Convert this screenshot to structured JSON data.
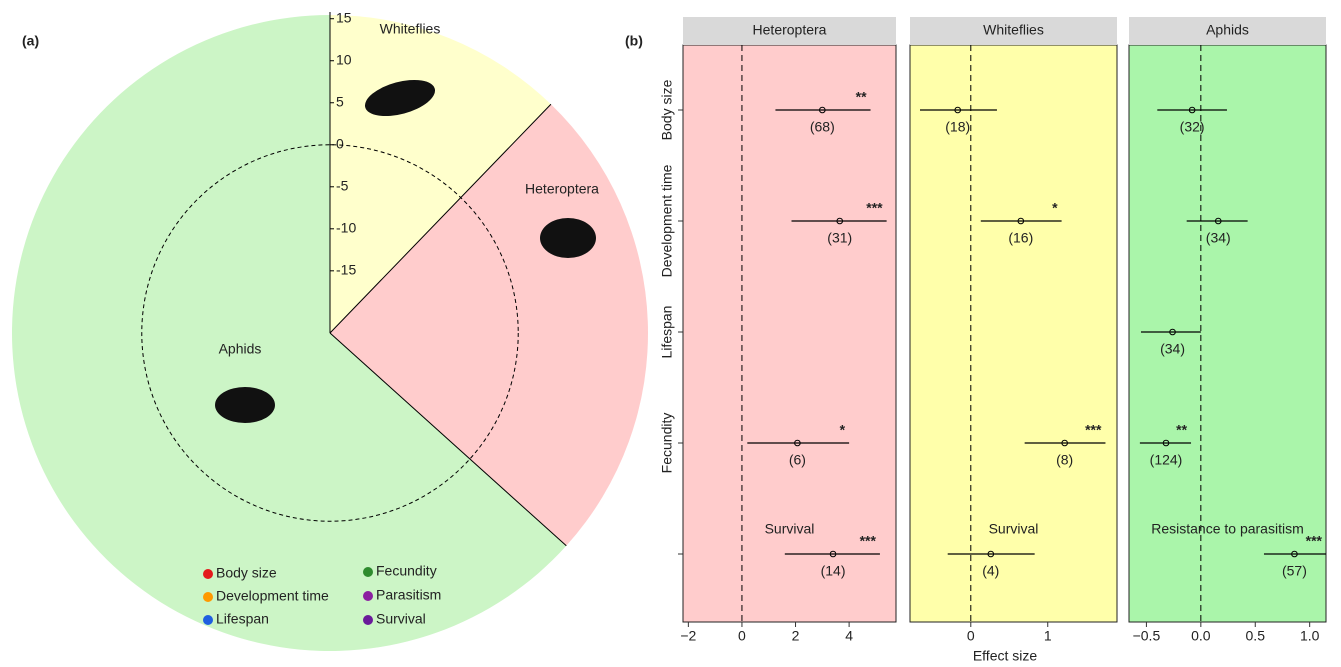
{
  "chart_data": [
    {
      "type": "radial",
      "panel_label": "(a)",
      "rlim": [
        -22.4,
        15.8
      ],
      "rticks": [
        15,
        10,
        5,
        0,
        -5,
        -10,
        -15
      ],
      "clades": [
        {
          "name": "Whiteflies",
          "color": "#ffffcc"
        },
        {
          "name": "Heteroptera",
          "color": "#ffcccc"
        },
        {
          "name": "Aphids",
          "color": "#ccf5c6"
        }
      ],
      "legend": [
        {
          "name": "Body size",
          "color": "#e41a1c"
        },
        {
          "name": "Development time",
          "color": "#ff9900"
        },
        {
          "name": "Lifespan",
          "color": "#1f5fe0"
        },
        {
          "name": "Fecundity",
          "color": "#2e8b2e"
        },
        {
          "name": "Parasitism",
          "color": "#8b1fa0"
        },
        {
          "name": "Survival",
          "color": "#6a1a9a"
        }
      ]
    },
    {
      "type": "forest",
      "panel_label": "(b)",
      "xlabel": "Effect size",
      "categories": [
        "Body size",
        "Development time",
        "Lifespan",
        "Fecundity",
        null
      ],
      "facets": [
        {
          "title": "Heteroptera",
          "color": "#ffcccc",
          "xlim": [
            -2.2,
            5.75
          ],
          "xticks": [
            {
              "value": -2,
              "label": "−2"
            },
            0,
            2,
            4
          ],
          "values": [
            3.0,
            3.65,
            null,
            2.07,
            3.4
          ],
          "lower": [
            1.25,
            1.85,
            null,
            0.2,
            1.6
          ],
          "upper": [
            4.8,
            5.4,
            null,
            4.0,
            5.15
          ],
          "n_labels": [
            "(68)",
            "(31)",
            null,
            "(6)",
            "(14)"
          ],
          "sig": [
            "**",
            "***",
            null,
            "*",
            "***"
          ],
          "notes": [
            null,
            null,
            null,
            null,
            "Survival"
          ]
        },
        {
          "title": "Whiteflies",
          "color": "#ffffaa",
          "xlim": [
            -0.79,
            1.9
          ],
          "xticks": [
            0,
            1
          ],
          "values": [
            -0.17,
            0.65,
            null,
            1.22,
            0.26
          ],
          "lower": [
            -0.66,
            0.13,
            null,
            0.7,
            -0.3
          ],
          "upper": [
            0.34,
            1.18,
            null,
            1.75,
            0.83
          ],
          "n_labels": [
            "(18)",
            "(16)",
            null,
            "(8)",
            "(4)"
          ],
          "sig": [
            null,
            "*",
            null,
            "***",
            null
          ],
          "notes": [
            null,
            null,
            null,
            null,
            "Survival"
          ]
        },
        {
          "title": "Aphids",
          "color": "#aaf5aa",
          "xlim": [
            -0.66,
            1.15
          ],
          "xticks": [
            {
              "value": -0.5,
              "label": "−0.5"
            },
            {
              "value": 0,
              "label": "0.0"
            },
            0.5,
            {
              "value": 1,
              "label": "1.0"
            }
          ],
          "values": [
            -0.08,
            0.16,
            -0.26,
            -0.32,
            0.86
          ],
          "lower": [
            -0.4,
            -0.13,
            -0.55,
            -0.56,
            0.58
          ],
          "upper": [
            0.24,
            0.43,
            0,
            -0.09,
            1.15
          ],
          "n_labels": [
            "(32)",
            "(34)",
            "(34)",
            "(124)",
            "(57)"
          ],
          "sig": [
            null,
            null,
            null,
            "**",
            "***"
          ],
          "notes": [
            null,
            null,
            null,
            null,
            "Resistance to parasitism"
          ]
        }
      ]
    }
  ]
}
